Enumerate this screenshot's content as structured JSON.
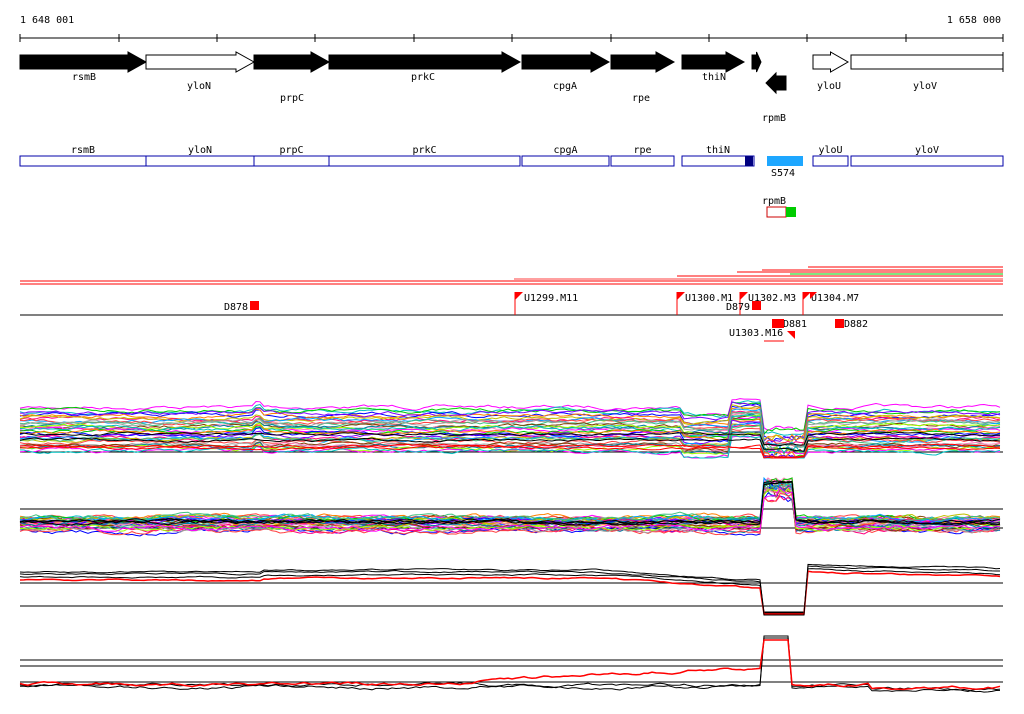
{
  "coords": {
    "start": "1 648 001",
    "end": "1 658 000"
  },
  "colors": {
    "gene_fill": "#000000",
    "gene_open": "#ffffff",
    "annot_stroke": "#0000aa",
    "annot_dark": "#000080",
    "sRNA": "#1ea7ff",
    "segment": "#ff0000",
    "green": "#00cc00",
    "track_black": "#000000",
    "track_red": "#ff0000"
  },
  "genes": [
    {
      "name": "rsmB",
      "strand": "+",
      "filled": true
    },
    {
      "name": "yloN",
      "strand": "+",
      "filled": false
    },
    {
      "name": "prpC",
      "strand": "+",
      "filled": true
    },
    {
      "name": "prkC",
      "strand": "+",
      "filled": true
    },
    {
      "name": "cpgA",
      "strand": "+",
      "filled": true
    },
    {
      "name": "rpe",
      "strand": "+",
      "filled": true
    },
    {
      "name": "thiN",
      "strand": "+",
      "filled": true
    },
    {
      "name": "",
      "strand": "+",
      "filled": true
    },
    {
      "name": "rpmB",
      "strand": "-",
      "filled": true
    },
    {
      "name": "yloU",
      "strand": "+",
      "filled": false
    },
    {
      "name": "yloV",
      "strand": "+",
      "filled": false
    }
  ],
  "annotations": [
    {
      "name": "rsmB"
    },
    {
      "name": "yloN"
    },
    {
      "name": "prpC"
    },
    {
      "name": "prkC"
    },
    {
      "name": "cpgA"
    },
    {
      "name": "rpe"
    },
    {
      "name": "thiN"
    },
    {
      "name": "yloU"
    },
    {
      "name": "yloV"
    }
  ],
  "srna": {
    "name": "S574"
  },
  "operon": {
    "name": "rpmB"
  },
  "segments": [
    {
      "name": "D878"
    },
    {
      "name": "U1299.M11"
    },
    {
      "name": "U1300.M1"
    },
    {
      "name": "U1302.M3"
    },
    {
      "name": "D879"
    },
    {
      "name": "U1304.M7"
    },
    {
      "name": "D881"
    },
    {
      "name": "U1303.M16"
    },
    {
      "name": "D882"
    }
  ]
}
